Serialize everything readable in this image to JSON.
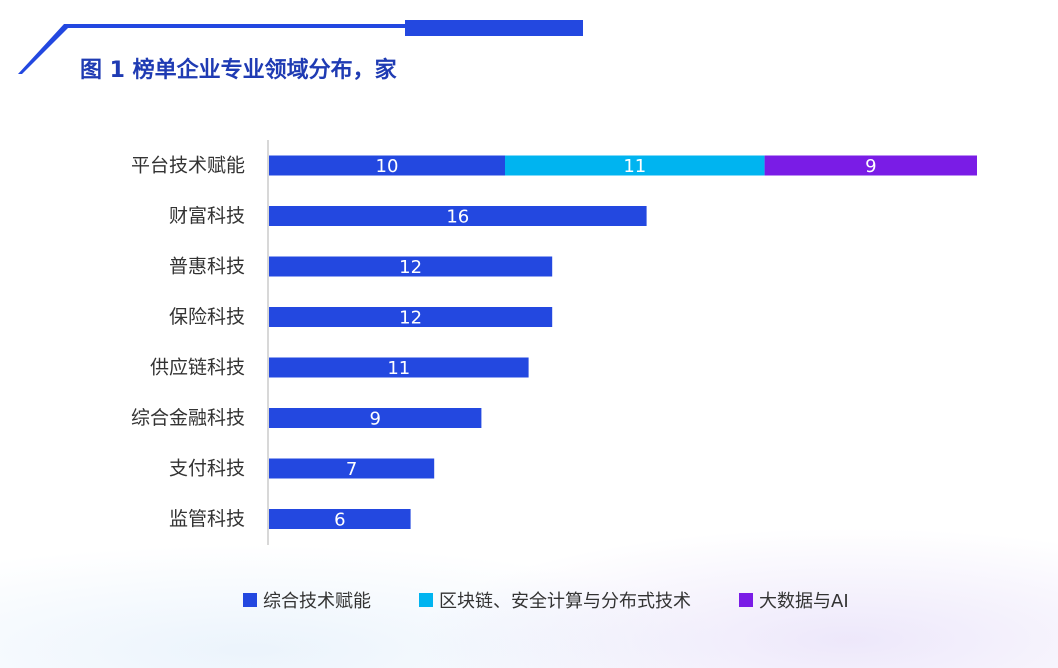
{
  "title": "图 1 榜单企业专业领域分布，家",
  "colors": {
    "title": "#1f3bb3",
    "accent_bar": "#1f4fe0",
    "axis": "#cccccc"
  },
  "chart_data": {
    "type": "bar",
    "orientation": "horizontal",
    "stacked": true,
    "title": "图 1 榜单企业专业领域分布，家",
    "categories": [
      "平台技术赋能",
      "财富科技",
      "普惠科技",
      "保险科技",
      "供应链科技",
      "综合金融科技",
      "支付科技",
      "监管科技"
    ],
    "series": [
      {
        "name": "综合技术赋能",
        "color": "#2348e0",
        "values": [
          10,
          16,
          12,
          12,
          11,
          9,
          7,
          6
        ]
      },
      {
        "name": "区块链、安全计算与分布式技术",
        "color": "#00b4f0",
        "values": [
          11,
          null,
          null,
          null,
          null,
          null,
          null,
          null
        ]
      },
      {
        "name": "大数据与AI",
        "color": "#7a1ce6",
        "values": [
          9,
          null,
          null,
          null,
          null,
          null,
          null,
          null
        ]
      }
    ],
    "xlim": [
      0,
      30
    ],
    "grid": false,
    "legend_position": "bottom"
  }
}
